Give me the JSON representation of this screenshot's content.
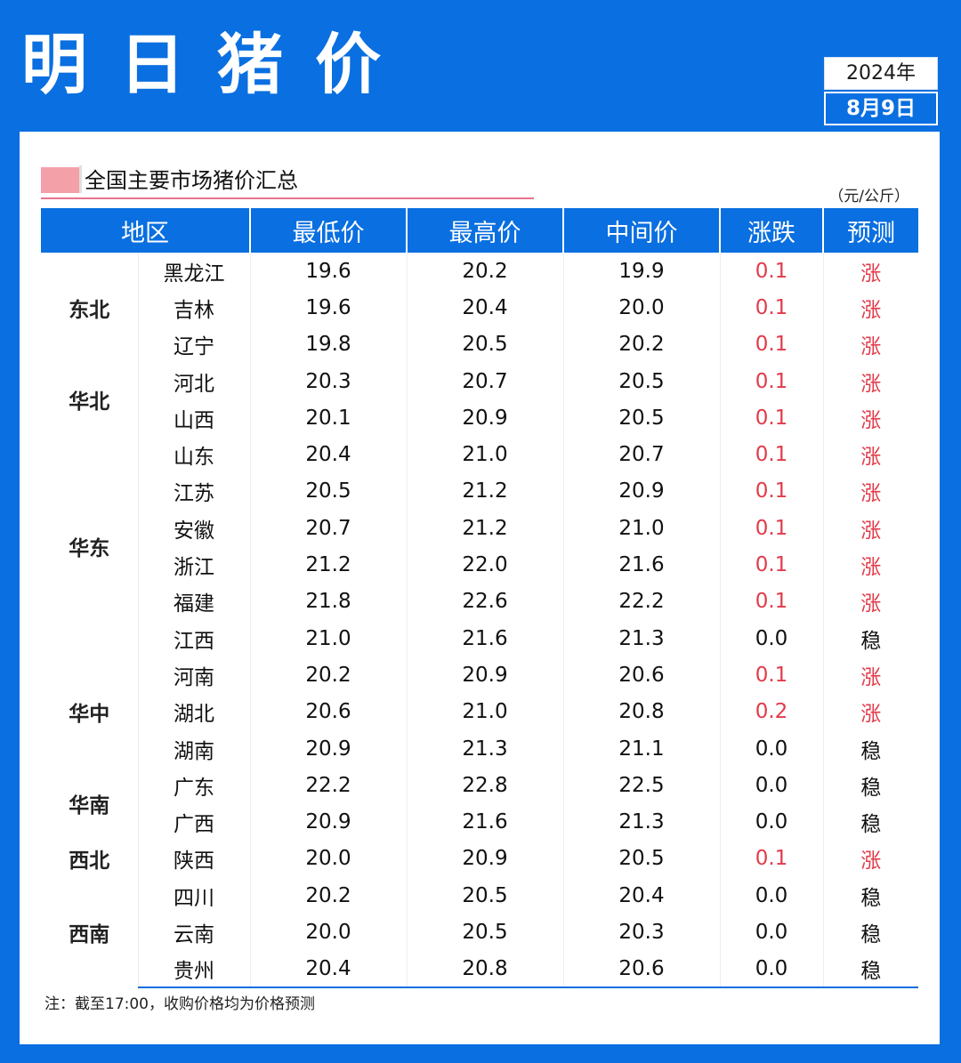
{
  "title": [
    "明",
    "日",
    "猪",
    "价"
  ],
  "date": {
    "year": "2024年",
    "day": "8月9日"
  },
  "section_title": "全国主要市场猪价汇总",
  "unit": "（元/公斤）",
  "colors": {
    "brand_blue": "#0a6fe0",
    "up_red": "#e23b4a",
    "swatch_pink": "#f4a0a8"
  },
  "table": {
    "headers": [
      "地区",
      "最低价",
      "最高价",
      "中间价",
      "涨跌",
      "预测"
    ],
    "regions": [
      {
        "name": "东北",
        "rows": 3
      },
      {
        "name": "华北",
        "rows": 2
      },
      {
        "name": "华东",
        "rows": 6
      },
      {
        "name": "华中",
        "rows": 3
      },
      {
        "name": "华南",
        "rows": 2
      },
      {
        "name": "西北",
        "rows": 1
      },
      {
        "name": "西南",
        "rows": 3
      }
    ],
    "rows": [
      {
        "province": "黑龙江",
        "low": "19.6",
        "high": "20.2",
        "mid": "19.9",
        "change": "0.1",
        "forecast": "涨"
      },
      {
        "province": "吉林",
        "low": "19.6",
        "high": "20.4",
        "mid": "20.0",
        "change": "0.1",
        "forecast": "涨"
      },
      {
        "province": "辽宁",
        "low": "19.8",
        "high": "20.5",
        "mid": "20.2",
        "change": "0.1",
        "forecast": "涨"
      },
      {
        "province": "河北",
        "low": "20.3",
        "high": "20.7",
        "mid": "20.5",
        "change": "0.1",
        "forecast": "涨"
      },
      {
        "province": "山西",
        "low": "20.1",
        "high": "20.9",
        "mid": "20.5",
        "change": "0.1",
        "forecast": "涨"
      },
      {
        "province": "山东",
        "low": "20.4",
        "high": "21.0",
        "mid": "20.7",
        "change": "0.1",
        "forecast": "涨"
      },
      {
        "province": "江苏",
        "low": "20.5",
        "high": "21.2",
        "mid": "20.9",
        "change": "0.1",
        "forecast": "涨"
      },
      {
        "province": "安徽",
        "low": "20.7",
        "high": "21.2",
        "mid": "21.0",
        "change": "0.1",
        "forecast": "涨"
      },
      {
        "province": "浙江",
        "low": "21.2",
        "high": "22.0",
        "mid": "21.6",
        "change": "0.1",
        "forecast": "涨"
      },
      {
        "province": "福建",
        "low": "21.8",
        "high": "22.6",
        "mid": "22.2",
        "change": "0.1",
        "forecast": "涨"
      },
      {
        "province": "江西",
        "low": "21.0",
        "high": "21.6",
        "mid": "21.3",
        "change": "0.0",
        "forecast": "稳"
      },
      {
        "province": "河南",
        "low": "20.2",
        "high": "20.9",
        "mid": "20.6",
        "change": "0.1",
        "forecast": "涨"
      },
      {
        "province": "湖北",
        "low": "20.6",
        "high": "21.0",
        "mid": "20.8",
        "change": "0.2",
        "forecast": "涨"
      },
      {
        "province": "湖南",
        "low": "20.9",
        "high": "21.3",
        "mid": "21.1",
        "change": "0.0",
        "forecast": "稳"
      },
      {
        "province": "广东",
        "low": "22.2",
        "high": "22.8",
        "mid": "22.5",
        "change": "0.0",
        "forecast": "稳"
      },
      {
        "province": "广西",
        "low": "20.9",
        "high": "21.6",
        "mid": "21.3",
        "change": "0.0",
        "forecast": "稳"
      },
      {
        "province": "陕西",
        "low": "20.0",
        "high": "20.9",
        "mid": "20.5",
        "change": "0.1",
        "forecast": "涨"
      },
      {
        "province": "四川",
        "low": "20.2",
        "high": "20.5",
        "mid": "20.4",
        "change": "0.0",
        "forecast": "稳"
      },
      {
        "province": "云南",
        "low": "20.0",
        "high": "20.5",
        "mid": "20.3",
        "change": "0.0",
        "forecast": "稳"
      },
      {
        "province": "贵州",
        "low": "20.4",
        "high": "20.8",
        "mid": "20.6",
        "change": "0.0",
        "forecast": "稳"
      }
    ]
  },
  "note": "注：截至17:00，收购价格均为价格预测"
}
